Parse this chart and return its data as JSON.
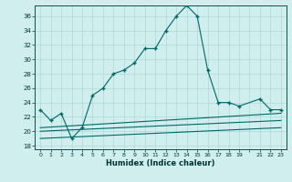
{
  "title": "",
  "xlabel": "Humidex (Indice chaleur)",
  "bg_color": "#d0eeee",
  "line_color": "#006666",
  "grid_color": "#b0d8d8",
  "xlim": [
    -0.5,
    23.5
  ],
  "ylim": [
    17.5,
    37.5
  ],
  "yticks": [
    18,
    20,
    22,
    24,
    26,
    28,
    30,
    32,
    34,
    36
  ],
  "xtick_labels": [
    "0",
    "1",
    "2",
    "3",
    "4",
    "5",
    "6",
    "7",
    "8",
    "9",
    "10",
    "11",
    "12",
    "13",
    "14",
    "15",
    "16",
    "17",
    "18",
    "19",
    "",
    "21",
    "22",
    "23"
  ],
  "main_line": {
    "x": [
      0,
      1,
      2,
      3,
      4,
      5,
      6,
      7,
      8,
      9,
      10,
      11,
      12,
      13,
      14,
      15,
      16,
      17,
      18,
      19,
      21,
      22,
      23
    ],
    "y": [
      23,
      21.5,
      22.5,
      19.0,
      20.5,
      25.0,
      26.0,
      28.0,
      28.5,
      29.5,
      31.5,
      31.5,
      34.0,
      36.0,
      37.5,
      36.0,
      28.5,
      24.0,
      24.0,
      23.5,
      24.5,
      23.0,
      23.0
    ]
  },
  "ref_lines": [
    {
      "x": [
        0,
        23
      ],
      "y": [
        20.5,
        22.5
      ]
    },
    {
      "x": [
        0,
        23
      ],
      "y": [
        20.0,
        21.5
      ]
    },
    {
      "x": [
        0,
        23
      ],
      "y": [
        19.0,
        20.5
      ]
    }
  ]
}
